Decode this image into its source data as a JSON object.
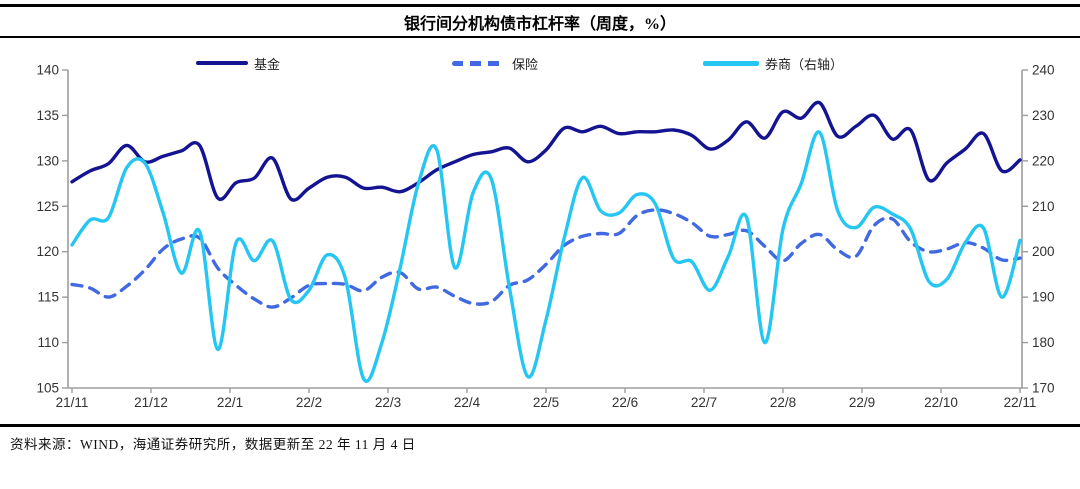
{
  "title": "银行间分机构债市杠杆率（周度，%）",
  "source_note": "资料来源：WIND，海通证券研究所，数据更新至 22 年 11 月 4 日",
  "colors": {
    "fund": "#141492",
    "insurance": "#4169e1",
    "securities": "#25c6f2",
    "axis": "#9d9d9d",
    "tick_text": "#333333"
  },
  "chart_data": {
    "type": "line",
    "title": "银行间分机构债市杠杆率（周度，%）",
    "grid": false,
    "legend_position": "top",
    "x_labels": [
      "21/11",
      "21/12",
      "22/1",
      "22/2",
      "22/3",
      "22/4",
      "22/5",
      "22/6",
      "22/7",
      "22/8",
      "22/9",
      "22/10",
      "22/11"
    ],
    "left_axis": {
      "min": 105,
      "max": 140,
      "ticks": [
        140,
        135,
        130,
        125,
        120,
        115,
        110,
        105
      ]
    },
    "right_axis": {
      "min": 170,
      "max": 240,
      "ticks": [
        240,
        230,
        220,
        210,
        200,
        190,
        180,
        170
      ]
    },
    "series": [
      {
        "id": "fund",
        "name": "基金",
        "axis": "left",
        "style": "solid",
        "color": "#141492",
        "values": [
          127.7,
          128.9,
          129.7,
          131.7,
          129.9,
          130.5,
          131.1,
          131.7,
          125.9,
          127.6,
          128.1,
          130.3,
          125.8,
          127.0,
          128.2,
          128.2,
          127.0,
          127.1,
          126.6,
          127.6,
          129.0,
          129.9,
          130.7,
          131.0,
          131.4,
          129.9,
          131.2,
          133.6,
          133.2,
          133.8,
          133.0,
          133.2,
          133.2,
          133.4,
          132.8,
          131.3,
          132.3,
          134.3,
          132.5,
          135.4,
          134.7,
          136.4,
          132.7,
          133.8,
          135.0,
          132.4,
          133.4,
          127.9,
          129.8,
          131.3,
          133.0,
          128.9,
          130.1
        ]
      },
      {
        "id": "insurance",
        "name": "保险",
        "axis": "left",
        "style": "dashed",
        "color": "#4169e1",
        "values": [
          116.4,
          116.0,
          115.0,
          116.2,
          118.0,
          120.3,
          121.4,
          121.5,
          118.2,
          116.3,
          114.8,
          113.9,
          114.9,
          116.3,
          116.5,
          116.4,
          115.7,
          117.2,
          117.7,
          115.9,
          116.1,
          115.1,
          114.3,
          114.5,
          116.3,
          116.9,
          118.6,
          120.7,
          121.7,
          122.0,
          122.0,
          124.0,
          124.6,
          124.2,
          123.2,
          121.7,
          121.9,
          122.3,
          120.6,
          119.0,
          120.9,
          121.9,
          120.2,
          119.5,
          122.9,
          123.6,
          121.1,
          120.0,
          120.3,
          121.0,
          120.4,
          119.1,
          119.3
        ]
      },
      {
        "id": "securities",
        "name": "券商（右轴）",
        "axis": "right",
        "style": "solid",
        "color": "#25c6f2",
        "values": [
          201.5,
          207.0,
          207.5,
          218.5,
          219.5,
          208.5,
          195.3,
          204.5,
          178.5,
          202.0,
          198.0,
          202.4,
          189.5,
          191.5,
          199.3,
          194.0,
          172.0,
          180.0,
          196.5,
          215.0,
          222.5,
          196.5,
          213.0,
          216.0,
          192.0,
          172.5,
          185.0,
          203.0,
          216.3,
          209.0,
          208.5,
          212.6,
          210.5,
          198.5,
          197.8,
          191.5,
          199.0,
          207.6,
          180.0,
          205.0,
          215.0,
          226.3,
          209.0,
          205.3,
          209.8,
          208.3,
          205.0,
          193.5,
          194.0,
          202.0,
          205.2,
          190.0,
          202.5
        ]
      }
    ]
  }
}
